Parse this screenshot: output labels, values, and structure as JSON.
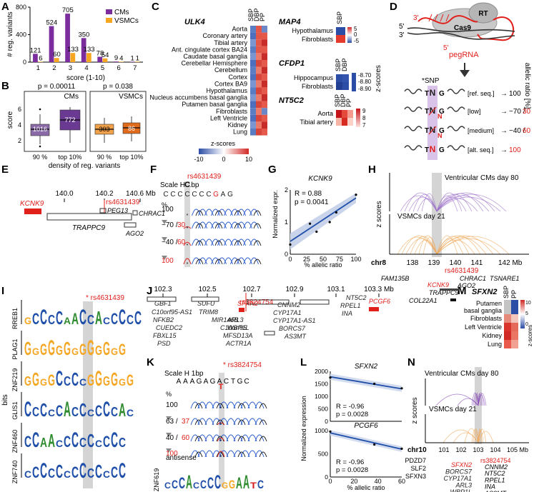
{
  "colors": {
    "cm": "#7b2d9e",
    "cm_light": "#9b6fc8",
    "vsmc": "#f5a623",
    "red": "#e0201b",
    "blue": "#1f4fa8",
    "grey": "#888888"
  },
  "panel_letters": [
    "A",
    "B",
    "C",
    "D",
    "E",
    "F",
    "G",
    "H",
    "I",
    "J",
    "K",
    "L",
    "M",
    "N"
  ],
  "panel_a": {
    "ylabel": "# reg. variants",
    "xlabel": "score (1-10)",
    "legend": [
      "CMs",
      "VSMCs"
    ],
    "chart_data": {
      "type": "bar",
      "categories": [
        "1",
        "2",
        "3",
        "4",
        "5",
        "6",
        "7"
      ],
      "series": [
        {
          "name": "CMs",
          "values": [
            121,
            524,
            705,
            350,
            78,
            9,
            1
          ]
        },
        {
          "name": "VSMCs",
          "values": [
            6,
            60,
            133,
            133,
            54,
            4,
            1
          ]
        }
      ],
      "ylim": [
        0,
        800
      ],
      "yticks": [
        0,
        400,
        800
      ],
      "xlabel": "score (1-10)",
      "ylabel": "# reg. variants"
    }
  },
  "panel_b": {
    "ylabel": "score",
    "xlabel": "density of reg. variants",
    "yticks": [
      "2",
      "4",
      "6"
    ],
    "groups": [
      {
        "label": "CMs",
        "pvalue": "p = 0.00011",
        "cats": [
          "90 %",
          "top 10%"
        ],
        "ns": [
          "1016",
          "772"
        ]
      },
      {
        "label": "VSMCs",
        "pvalue": "p = 0.038",
        "cats": [
          "90 %",
          "top 10%"
        ],
        "ns": [
          "303",
          "86"
        ]
      }
    ]
  },
  "panel_c": {
    "title_left": "ULK4",
    "tissues": [
      "Aorta",
      "Coronary artery",
      "Tibial artery",
      "Ant. cingulate cortex BA24",
      "Caudate basal ganglia",
      "Cerebellar Hemisphere",
      "Cerebellum",
      "Cortex",
      "Cortex BA9",
      "Hypothalamus",
      "Nucleus accumbens basal ganglia",
      "Putamen basal ganglia",
      "Fibroblasts",
      "Left Ventricle",
      "Kidney",
      "Lung"
    ],
    "cols": [
      "SBP",
      "DBP",
      "PP"
    ],
    "colorbar_label": "z-scores",
    "colorbar_ticks": [
      "-10",
      "0",
      "10"
    ],
    "z_label": "z-scores",
    "genes": [
      {
        "name": "MAP4",
        "cols": [
          "SBP"
        ],
        "tissues": [
          "Hypothalamus",
          "Fibroblasts"
        ],
        "ticks": [
          "5",
          "0",
          "-5"
        ]
      },
      {
        "name": "CFDP1",
        "cols": [
          "SBP",
          "DBP"
        ],
        "tissues": [
          "Hippocampus",
          "Fibroblasts"
        ],
        "ticks": [
          "-8.70",
          "-8.80",
          "-8.90"
        ]
      },
      {
        "name": "NT5C2",
        "cols": [
          "SBP",
          "DBP",
          "PP"
        ],
        "tissues": [
          "Aorta",
          "Tibial artery"
        ],
        "ticks": [
          "9",
          "8",
          "7"
        ]
      }
    ]
  },
  "panel_d": {
    "rt": "RT",
    "cas9": "Cas9",
    "pegrna": "pegRNA",
    "snp": "*SNP",
    "prime3": "3'",
    "prime5": "5'",
    "rows": [
      {
        "label": "[ref. seq.]",
        "value": "100",
        "alt": ""
      },
      {
        "label": "[low]",
        "value": "~70 /",
        "alt": "30"
      },
      {
        "label": "[medium]",
        "value": "~40 /",
        "alt": "60"
      },
      {
        "label": "[alt. seq.]",
        "value": "",
        "alt": "100"
      }
    ],
    "side_label": "allelic ratio [%]"
  },
  "panel_e": {
    "ticks": [
      "140.0",
      "140.2",
      "140.6 Mb"
    ],
    "snp": "rs4631439",
    "genes": [
      "KCNK9",
      "PEG13",
      "CHRAC1",
      "TRAPPC9",
      "AGO2"
    ]
  },
  "panel_f": {
    "scale": "Scale H 1bp",
    "snp": "rs4631439",
    "sequence": [
      "C",
      "C",
      "C",
      "C",
      "C",
      "C",
      "C",
      "G",
      "A",
      "G"
    ],
    "pct_label": "%",
    "rows": [
      {
        "ref": "100",
        "alt": ""
      },
      {
        "ref": "~70 /",
        "alt": "30"
      },
      {
        "ref": "~40 /",
        "alt": "60"
      },
      {
        "ref": "",
        "alt": "100"
      }
    ]
  },
  "panel_g": {
    "gene": "KCNK9",
    "r": "R = 0.88",
    "p": "p = 0.0041",
    "ylabel": "Normalized expr.",
    "xlabel": "% allelic ratio",
    "chart_data": {
      "type": "scatter",
      "x": [
        0,
        30,
        40,
        60,
        70,
        100
      ],
      "y": [
        0.3,
        0.95,
        0.7,
        1.0,
        1.3,
        1.85
      ],
      "xlim": [
        0,
        100
      ],
      "ylim": [
        0,
        2
      ],
      "xticks": [
        0,
        25,
        50,
        75,
        100
      ],
      "yticks": [
        0,
        1,
        2
      ],
      "fit": {
        "x": [
          0,
          100
        ],
        "y": [
          0.4,
          1.75
        ]
      }
    }
  },
  "panel_h": {
    "top_label": "Ventricular CMs day 80",
    "bottom_label": "VSMCs day 21",
    "ylabel": "z scores",
    "chr": "chr8",
    "ticks": [
      "138",
      "139",
      "140",
      "141",
      "142 Mb"
    ],
    "snp": "rs4631439",
    "genes": [
      "FAM135B",
      "CHRAC1",
      "TSNARE1",
      "KCNK9",
      "AGO2",
      "TRAPPC9",
      "COL22A1"
    ]
  },
  "panel_i": {
    "snp": "* rs4631439",
    "ylabel": "bits",
    "motifs": [
      "RREB1",
      "PLAG1",
      "ZNF219",
      "GLIS1",
      "ZNF460",
      "ZNF740"
    ]
  },
  "panel_j": {
    "ticks": [
      "102.3",
      "102.5",
      "102.7",
      "102.9",
      "103.1",
      "103.3 Mb"
    ],
    "snp": "rs3824754",
    "genes": [
      "GBF1",
      "C10orf95-AS1",
      "NFKB2",
      "CUEDC2",
      "FBXL15",
      "PSD",
      "SUFU",
      "TRIM8",
      "MIR146B",
      "C10orf95",
      "MFSD13A",
      "ACTR1A",
      "SFXN2",
      "ARL3",
      "WBP1L",
      "CNNM2",
      "CYP17A1",
      "CYP17A1-AS1",
      "BORCS7",
      "AS3MT",
      "NT5C2",
      "RPEL1",
      "INA",
      "PCGF6"
    ]
  },
  "panel_k": {
    "scale": "Scale H 1bp",
    "snp": "* rs3824754",
    "sequence": [
      "A",
      "A",
      "A",
      "G",
      "A",
      "G",
      "A",
      "C",
      "T",
      "G",
      "C"
    ],
    "alt_base": "T",
    "pct_label": "%",
    "rows": [
      {
        "ref": "100",
        "alt": ""
      },
      {
        "ref": "63 /",
        "alt": "37"
      },
      {
        "ref": "40 /",
        "alt": "60"
      },
      {
        "ref": "",
        "alt": "100"
      }
    ],
    "antisense": "antisense",
    "motif": "ZNF619"
  },
  "panel_l": {
    "ylabel": "Normalized expression",
    "xlabel": "% allelic ratio",
    "chart_data": [
      {
        "type": "scatter",
        "title": "SFXN2",
        "x": [
          0,
          37,
          60
        ],
        "y": [
          1750,
          1500,
          1320
        ],
        "xlim": [
          0,
          60
        ],
        "ylim": [
          0,
          2000
        ],
        "yticks": [
          0,
          500,
          1000,
          1500,
          2000
        ],
        "r": "R = -0.96",
        "p": "p = 0.0028",
        "fit": {
          "x": [
            0,
            60
          ],
          "y": [
            1780,
            1300
          ]
        }
      },
      {
        "type": "scatter",
        "title": "PCGF6",
        "x": [
          0,
          37,
          60
        ],
        "y": [
          980,
          700,
          610
        ],
        "xlim": [
          0,
          60
        ],
        "ylim": [
          0,
          1000
        ],
        "yticks": [
          0,
          500,
          1000
        ],
        "xticks": [
          0,
          20,
          40,
          60
        ],
        "r": "R = -0.96",
        "p": "p = 0.0028",
        "fit": {
          "x": [
            0,
            60
          ],
          "y": [
            950,
            600
          ]
        }
      }
    ]
  },
  "panel_m": {
    "gene": "SFXN2",
    "cols": [
      "SBP",
      "PP"
    ],
    "tissues": [
      "Putamen basal ganglia",
      "Fibroblasts",
      "Left Ventricle",
      "Kidney",
      "Lung"
    ],
    "colorbar_label": "z-scores",
    "colorbar_ticks": [
      "10",
      "5",
      "0"
    ]
  },
  "panel_n": {
    "top_label": "Ventricular CMs day 80",
    "bottom_label": "VSMCs day 21",
    "ylabel": "z scores",
    "chr": "chr10",
    "ticks": [
      "101",
      "102",
      "103",
      "104",
      "105 Mb"
    ],
    "snp": "rs3824754",
    "genes_left": [
      "PDZD7",
      "SLF2",
      "SFXN3"
    ],
    "genes_mid": [
      "SFXN2",
      "BORCS7",
      "CYP17A1",
      "ARL3",
      "WBP1L"
    ],
    "genes_right": [
      "CNNM2",
      "NT5C2",
      "RPEL1",
      "INA",
      "AS3MT"
    ]
  }
}
